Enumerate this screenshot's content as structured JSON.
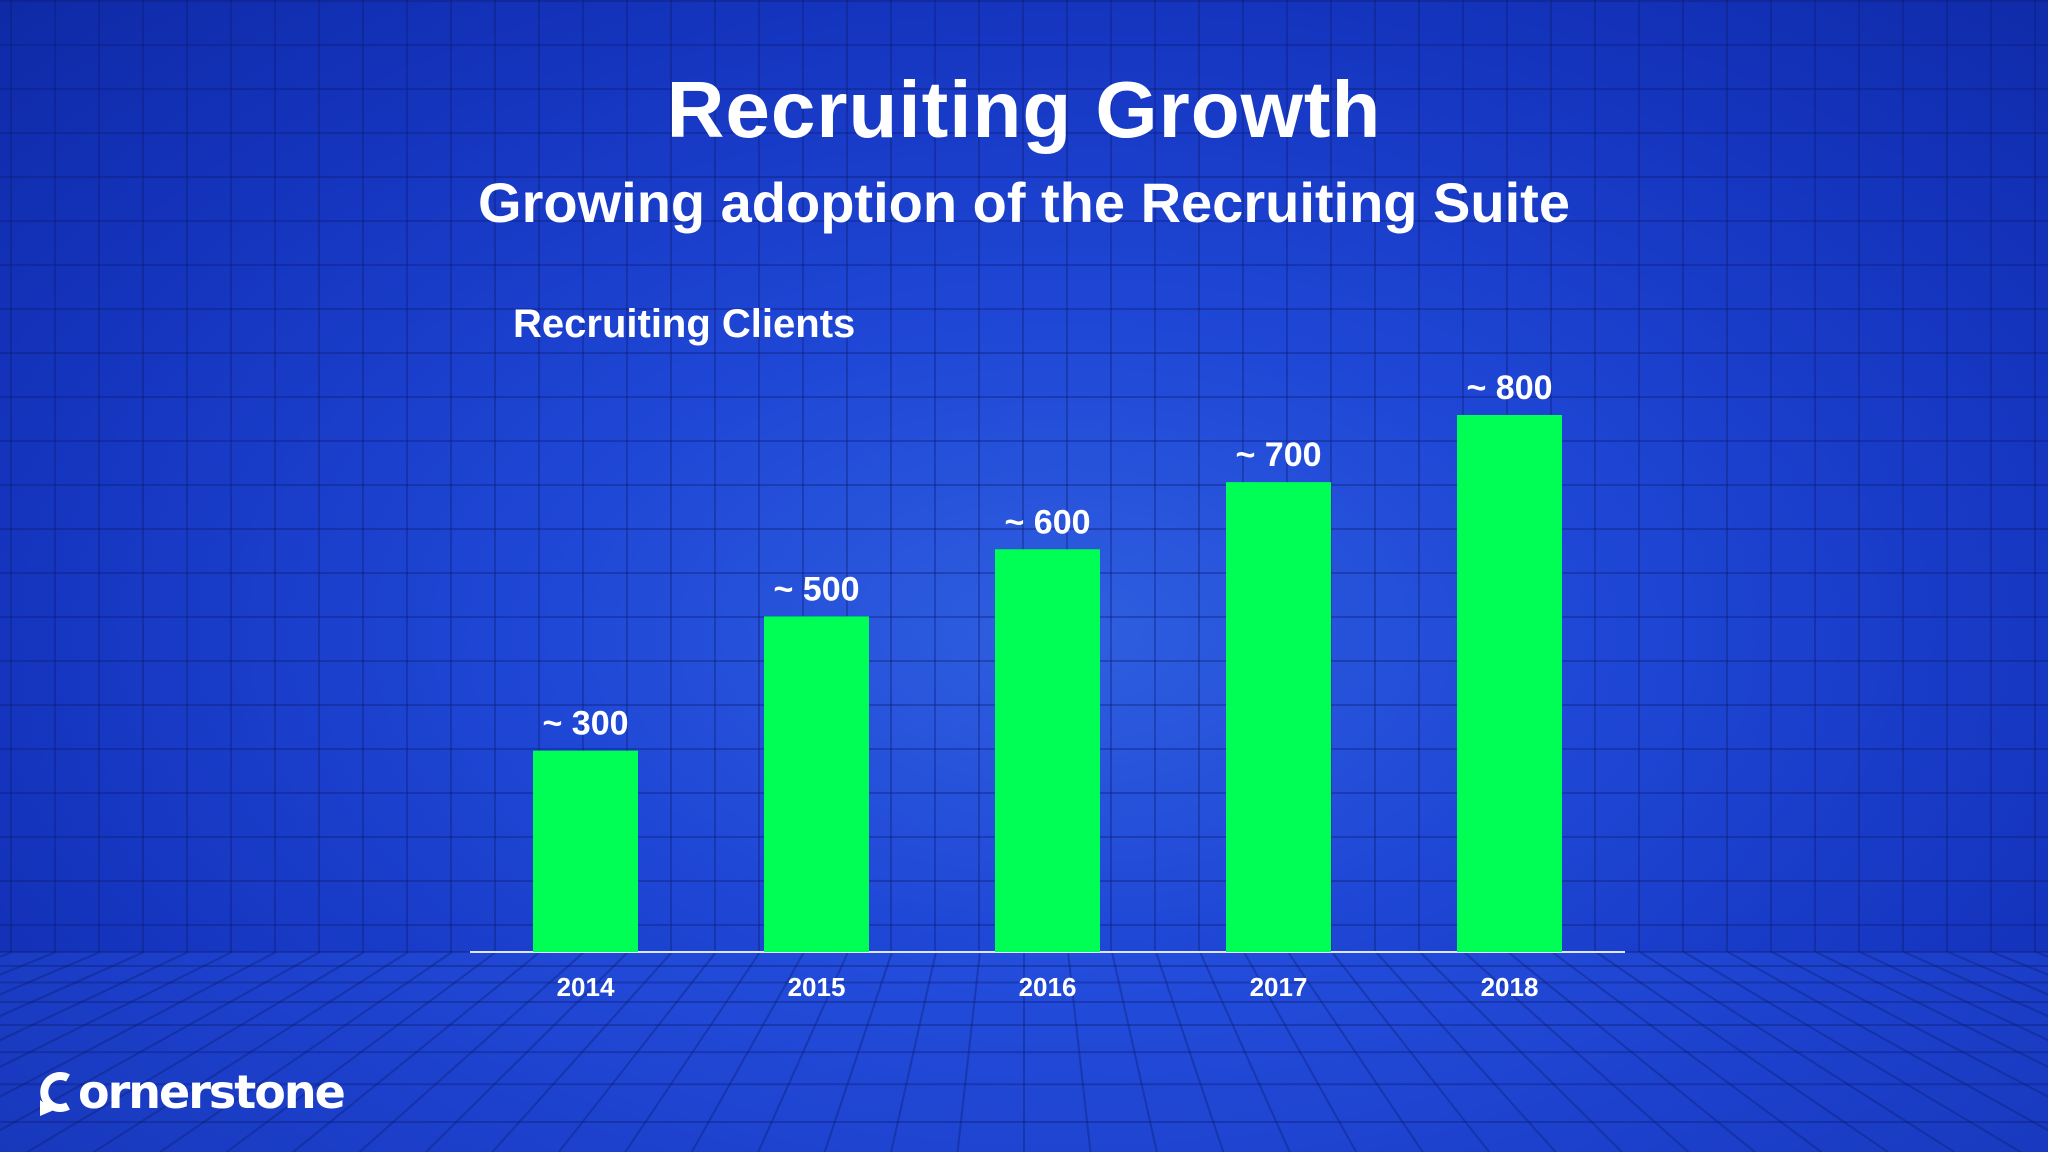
{
  "slide": {
    "title": "Recruiting Growth",
    "subtitle": "Growing adoption of the Recruiting Suite"
  },
  "logo": {
    "text": "ornerstone"
  },
  "colors": {
    "background": "#1f47d6",
    "bar": "#00ff55",
    "text": "#ffffff",
    "axis": "#dfe6ff"
  },
  "chart_data": {
    "type": "bar",
    "title": "Recruiting Clients",
    "categories": [
      "2014",
      "2015",
      "2016",
      "2017",
      "2018"
    ],
    "values": [
      300,
      500,
      600,
      700,
      800
    ],
    "data_labels": [
      "~ 300",
      "~ 500",
      "~ 600",
      "~ 700",
      "~ 800"
    ],
    "ylim": [
      0,
      800
    ],
    "grid": false,
    "legend": "none"
  }
}
